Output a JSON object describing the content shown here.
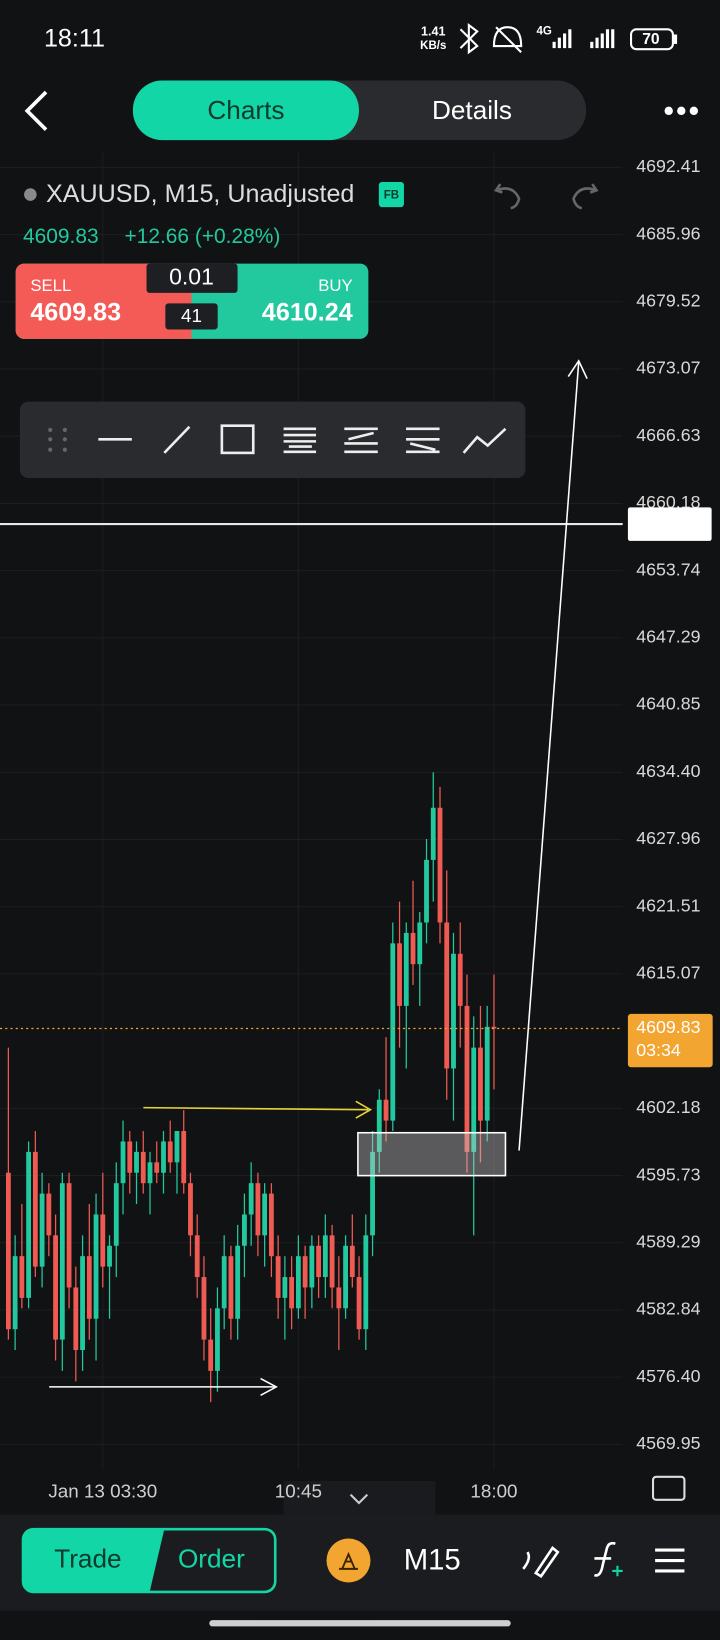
{
  "ui": {
    "status": {
      "time": "18:11",
      "speed": "1.41",
      "speed_unit": "KB/s",
      "network": "4G",
      "battery": "70"
    },
    "tabs": [
      "Charts",
      "Details"
    ],
    "symbol": "XAUUSD, M15, Unadjusted",
    "badge": "FB",
    "last_price": "4609.83",
    "change": "+12.66 (+0.28%)",
    "trade_panel": {
      "sell_label": "SELL",
      "sell_price": "4609.83",
      "lot": "0.01",
      "spread": "41",
      "buy_label": "BUY",
      "buy_price": "4610.24"
    },
    "bottom_bar": {
      "trade": "Trade",
      "order": "Order",
      "timeframe": "M15"
    }
  },
  "chart_data": {
    "type": "candlestick",
    "ylim": [
      4569.95,
      4692.41
    ],
    "yticks": [
      {
        "value": 4692.41,
        "label": "4692.41"
      },
      {
        "value": 4685.96,
        "label": "4685.96"
      },
      {
        "value": 4679.52,
        "label": "4679.52"
      },
      {
        "value": 4673.07,
        "label": "4673.07"
      },
      {
        "value": 4666.63,
        "label": "4666.63"
      },
      {
        "value": 4660.18,
        "label": "4660.18"
      },
      {
        "value": 4653.74,
        "label": "4653.74"
      },
      {
        "value": 4647.29,
        "label": "4647.29"
      },
      {
        "value": 4640.85,
        "label": "4640.85"
      },
      {
        "value": 4634.4,
        "label": "4634.40"
      },
      {
        "value": 4627.96,
        "label": "4627.96"
      },
      {
        "value": 4621.51,
        "label": "4621.51"
      },
      {
        "value": 4615.07,
        "label": "4615.07"
      },
      {
        "value": 4602.18,
        "label": "4602.18"
      },
      {
        "value": 4595.73,
        "label": "4595.73"
      },
      {
        "value": 4589.29,
        "label": "4589.29"
      },
      {
        "value": 4582.84,
        "label": "4582.84"
      },
      {
        "value": 4576.4,
        "label": "4576.40"
      },
      {
        "value": 4569.95,
        "label": "4569.95"
      }
    ],
    "xlim": [
      0,
      72
    ],
    "xticks": [
      {
        "value": 14,
        "label": "Jan 13 03:30"
      },
      {
        "value": 43,
        "label": "10:45"
      },
      {
        "value": 72,
        "label": "18:00"
      }
    ],
    "current_price": {
      "value": 4609.83,
      "label": "4609.83",
      "countdown": "03:34"
    },
    "horizontal_line": 4658.2,
    "up_color": "#22c99e",
    "down_color": "#ef5b52",
    "open": [
      4596,
      4581,
      4588,
      4584,
      4598,
      4587,
      4594,
      4590,
      4580,
      4595,
      4585,
      4579,
      4588,
      4582,
      4592,
      4587,
      4589,
      4595,
      4599,
      4596,
      4598,
      4595,
      4597,
      4596,
      4599,
      4597,
      4600,
      4595,
      4590,
      4586,
      4580,
      4577,
      4583,
      4588,
      4582,
      4589,
      4592,
      4595,
      4590,
      4594,
      4588,
      4584,
      4586,
      4583,
      4588,
      4585,
      4589,
      4586,
      4590,
      4585,
      4583,
      4589,
      4586,
      4581,
      4590,
      4598,
      4603,
      4601,
      4618,
      4612,
      4619,
      4616,
      4620,
      4626,
      4631,
      4620,
      4606,
      4617,
      4612,
      4598,
      4608,
      4601,
      4610
    ],
    "high": [
      4608,
      4590,
      4593,
      4599,
      4600,
      4596,
      4595,
      4592,
      4596,
      4596,
      4587,
      4590,
      4593,
      4594,
      4596,
      4590,
      4597,
      4601,
      4600,
      4599,
      4600,
      4598,
      4599,
      4600,
      4601,
      4600,
      4602,
      4596,
      4592,
      4588,
      4583,
      4585,
      4590,
      4589,
      4591,
      4594,
      4597,
      4596,
      4595,
      4595,
      4590,
      4588,
      4588,
      4590,
      4589,
      4590,
      4590,
      4592,
      4591,
      4588,
      4590,
      4592,
      4588,
      4592,
      4600,
      4604,
      4609,
      4620,
      4622,
      4620,
      4624,
      4621,
      4628,
      4634.4,
      4633,
      4625,
      4619,
      4620,
      4615,
      4611,
      4612,
      4612,
      4615
    ],
    "low": [
      4580,
      4579,
      4583,
      4583,
      4586,
      4585,
      4588,
      4578,
      4577,
      4583,
      4576,
      4577,
      4580,
      4578,
      4585,
      4582,
      4586,
      4592,
      4594,
      4593,
      4594,
      4592,
      4595,
      4594,
      4596,
      4594,
      4594,
      4588,
      4584,
      4578,
      4574,
      4575,
      4581,
      4580,
      4580,
      4586,
      4589,
      4588,
      4587,
      4586,
      4582,
      4580,
      4581,
      4582,
      4582,
      4583,
      4584,
      4584,
      4583,
      4579,
      4582,
      4585,
      4580,
      4579,
      4588,
      4596,
      4599,
      4600,
      4608,
      4606,
      4614,
      4612,
      4618,
      4622,
      4618,
      4603,
      4601,
      4608,
      4596,
      4590,
      4597,
      4599,
      4604
    ],
    "close": [
      4581,
      4588,
      4584,
      4598,
      4587,
      4594,
      4590,
      4580,
      4595,
      4585,
      4579,
      4588,
      4582,
      4592,
      4587,
      4589,
      4595,
      4599,
      4596,
      4598,
      4595,
      4597,
      4596,
      4599,
      4597,
      4600,
      4595,
      4590,
      4586,
      4580,
      4577,
      4583,
      4588,
      4582,
      4589,
      4592,
      4595,
      4590,
      4594,
      4588,
      4584,
      4586,
      4583,
      4588,
      4585,
      4589,
      4586,
      4590,
      4585,
      4583,
      4589,
      4586,
      4581,
      4590,
      4598,
      4603,
      4601,
      4618,
      4612,
      4619,
      4616,
      4620,
      4626,
      4631,
      4620,
      4606,
      4617,
      4612,
      4598,
      4608,
      4601,
      4610,
      4609.83
    ]
  }
}
